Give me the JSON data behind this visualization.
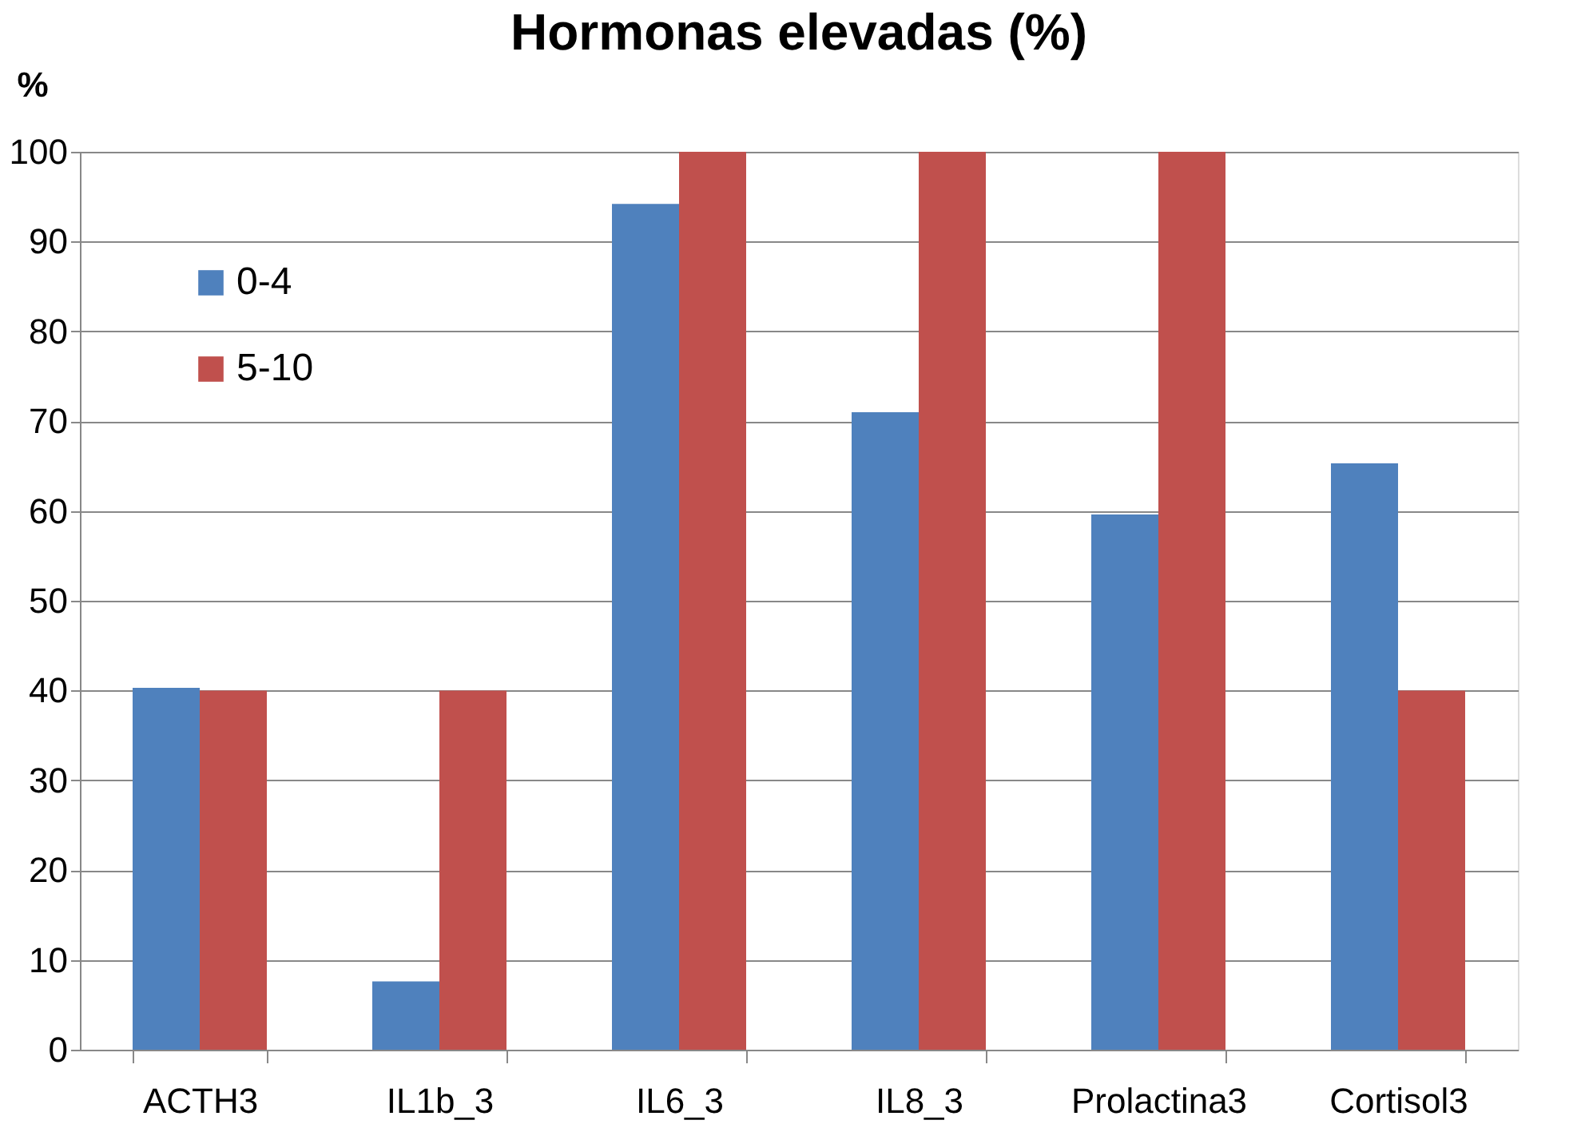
{
  "chart_data": {
    "type": "bar",
    "title": "Hormonas elevadas (%)",
    "ylabel": "%",
    "categories": [
      "ACTH3",
      "IL1b_3",
      "IL6_3",
      "IL8_3",
      "Prolactina3",
      "Cortisol3"
    ],
    "series": [
      {
        "name": "0-4",
        "color": "#4f81bd",
        "values": [
          40.3,
          7.6,
          94.2,
          71,
          59.6,
          65.3
        ]
      },
      {
        "name": "5-10",
        "color": "#c0504d",
        "values": [
          40,
          40,
          100,
          100,
          100,
          40
        ]
      }
    ],
    "ylim": [
      0,
      100
    ],
    "yticks": [
      0,
      10,
      20,
      30,
      40,
      50,
      60,
      70,
      80,
      90,
      100
    ],
    "grid": "y",
    "legend": "top left"
  }
}
